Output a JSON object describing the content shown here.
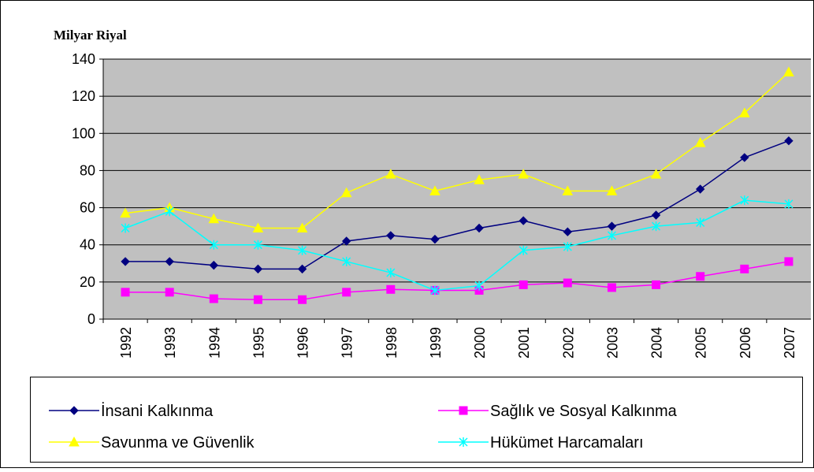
{
  "chart_data": {
    "type": "line",
    "y_label": "Milyar Riyal",
    "categories": [
      "1992",
      "1993",
      "1994",
      "1995",
      "1996",
      "1997",
      "1998",
      "1999",
      "2000",
      "2001",
      "2002",
      "2003",
      "2004",
      "2005",
      "2006",
      "2007"
    ],
    "ylim": [
      0,
      140
    ],
    "yticks": [
      0,
      20,
      40,
      60,
      80,
      100,
      120,
      140
    ],
    "grid": true,
    "series": [
      {
        "name": "İnsani Kalkınma",
        "color": "#000080",
        "marker": "diamond",
        "values": [
          31,
          31,
          29,
          27,
          27,
          42,
          45,
          43,
          49,
          53,
          47,
          50,
          56,
          70,
          87,
          96
        ]
      },
      {
        "name": "Sağlık ve Sosyal Kalkınma",
        "color": "#ff00ff",
        "marker": "square",
        "values": [
          14.5,
          14.5,
          11,
          10.5,
          10.5,
          14.5,
          16,
          15.5,
          15.5,
          18.5,
          19.5,
          17,
          18.5,
          23,
          27,
          31
        ]
      },
      {
        "name": "Savunma ve Güvenlik",
        "color": "#ffff00",
        "marker": "triangle",
        "values": [
          57,
          60,
          54,
          49,
          49,
          68,
          78,
          69,
          75,
          78,
          69,
          69,
          78,
          95,
          111,
          133
        ]
      },
      {
        "name": "Hükümet Harcamaları",
        "color": "#00ffff",
        "marker": "star",
        "values": [
          49,
          58,
          40,
          40,
          37,
          31,
          25,
          15.5,
          18,
          37,
          39,
          45,
          50,
          52,
          64,
          62
        ]
      }
    ]
  }
}
